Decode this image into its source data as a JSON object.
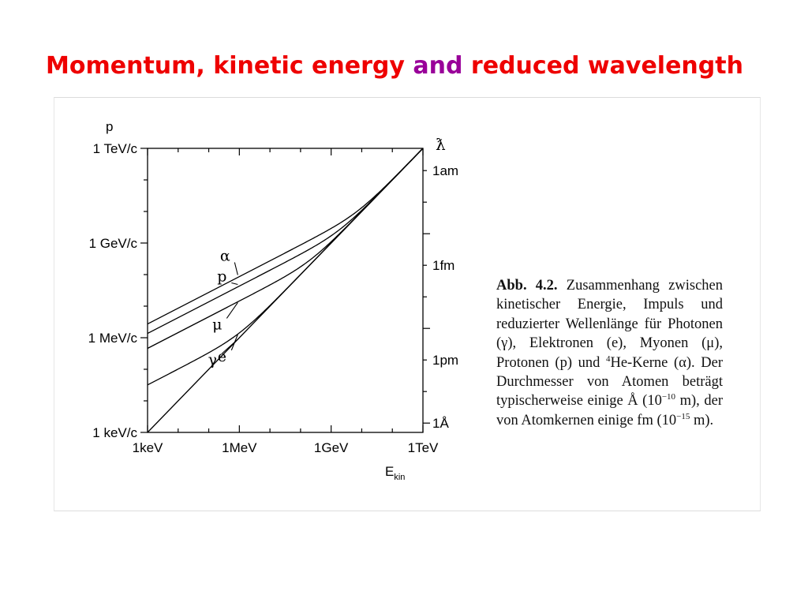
{
  "slide": {
    "title_parts": [
      {
        "text": "Momentum, kinetic energy",
        "color": "#ee0000"
      },
      {
        "text": " and ",
        "color": "#990099"
      },
      {
        "text": "reduced wavelength",
        "color": "#ee0000"
      }
    ]
  },
  "caption": {
    "lead": "Abb. 4.2.",
    "text_1": " Zusammenhang zwischen kinetischer Energie, Impuls und reduzierter Wellenlänge für Photonen (γ), Elektronen (e), Myonen (μ), Protonen (p) und ",
    "sup_1": "4",
    "text_2": "He-Kerne (α). Der Durchmesser von Atomen beträgt typischerweise einige Å (10",
    "sup_2": "−10",
    "text_3": " m), der von Atomkernen einige fm (10",
    "sup_3": "−15",
    "text_4": " m)."
  },
  "chart_data": {
    "type": "line",
    "xlabel": "E",
    "xlabel_sub": "kin",
    "ylabel_left": "p",
    "ylabel_right": "ƛ",
    "x_scale": "log",
    "y_scale": "log",
    "x_unit": "eV",
    "y_unit": "eV/c",
    "xlim": [
      1000,
      1000000000000.0
    ],
    "ylim": [
      1000,
      1000000000000.0
    ],
    "x_ticks": [
      {
        "value": 1000,
        "label": "1keV"
      },
      {
        "value": 1000000.0,
        "label": "1MeV"
      },
      {
        "value": 1000000000.0,
        "label": "1GeV"
      },
      {
        "value": 1000000000000.0,
        "label": "1TeV"
      }
    ],
    "y_ticks_left": [
      {
        "value": 1000,
        "label": "1 keV/c"
      },
      {
        "value": 1000000.0,
        "label": "1 MeV/c"
      },
      {
        "value": 1000000000.0,
        "label": "1 GeV/c"
      },
      {
        "value": 1000000000000.0,
        "label": "1 TeV/c"
      }
    ],
    "y_ticks_right": [
      {
        "value": 1973.27,
        "label": "1Å"
      },
      {
        "value": 197327,
        "label": "1pm"
      },
      {
        "value": 197327000,
        "label": "1fm"
      },
      {
        "value": 197327000000,
        "label": "1am"
      }
    ],
    "series": [
      {
        "name": "α",
        "mass_eV": 3727379000,
        "label_at_x": 1000000.0
      },
      {
        "name": "p",
        "mass_eV": 938272000,
        "label_at_x": 1000000.0
      },
      {
        "name": "μ",
        "mass_eV": 105658000,
        "label_at_x": 1000000.0
      },
      {
        "name": "e",
        "mass_eV": 511000,
        "label_at_x": 1000000.0
      },
      {
        "name": "γ",
        "mass_eV": 0,
        "label_at_x": 1000000.0
      }
    ]
  }
}
